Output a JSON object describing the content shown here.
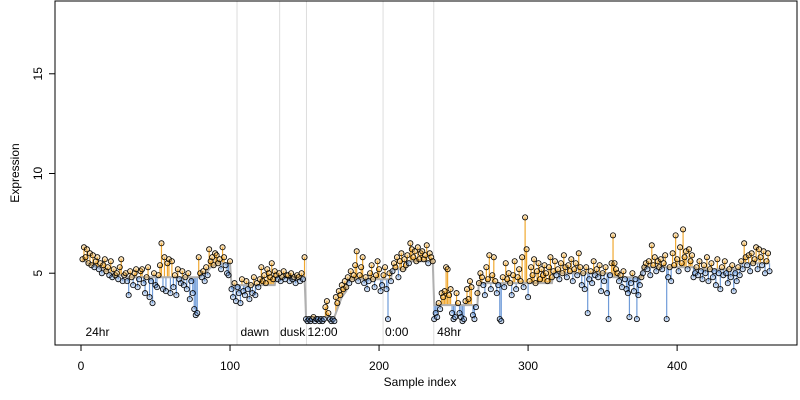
{
  "chart_data": {
    "type": "scatter",
    "xlabel": "Sample index",
    "ylabel": "Expression",
    "xlim": [
      -17.44,
      480.44
    ],
    "ylim": [
      1.4,
      18.65
    ],
    "xticks": [
      0,
      100,
      200,
      300,
      400
    ],
    "yticks": [
      5,
      10,
      15
    ],
    "colors": {
      "above": "#f0a830",
      "below": "#6f9bd8",
      "fit": "#b0b0b0",
      "point": "#000000",
      "vline": "#dddddd",
      "annotation": "#aaaaaa"
    },
    "vlines": [
      104.7,
      133.3,
      151.3,
      202.7,
      236.7
    ],
    "annotations": [
      {
        "text": "24hr",
        "x": 3,
        "y": 2.0
      },
      {
        "text": "dawn",
        "x": 107,
        "y": 2.0
      },
      {
        "text": "dusk",
        "x": 133.5,
        "y": 2.0
      },
      {
        "text": "12:00",
        "x": 152,
        "y": 2.0
      },
      {
        "text": "0:00",
        "x": 204,
        "y": 2.0
      },
      {
        "text": "48hr",
        "x": 239,
        "y": 2.0
      }
    ],
    "x": [
      1,
      2,
      3,
      4,
      5,
      6,
      7,
      8,
      9,
      10,
      11,
      12,
      13,
      14,
      15,
      16,
      17,
      18,
      19,
      20,
      21,
      22,
      23,
      24,
      25,
      26,
      27,
      28,
      29,
      30,
      31,
      32,
      33,
      34,
      35,
      36,
      37,
      38,
      39,
      40,
      41,
      42,
      43,
      44,
      45,
      46,
      47,
      48,
      49,
      50,
      51,
      52,
      53,
      54,
      55,
      56,
      57,
      58,
      59,
      60,
      61,
      62,
      63,
      64,
      65,
      66,
      67,
      68,
      69,
      70,
      71,
      72,
      73,
      74,
      75,
      76,
      77,
      78,
      79,
      80,
      81,
      82,
      83,
      84,
      85,
      86,
      87,
      88,
      89,
      90,
      91,
      92,
      93,
      94,
      95,
      96,
      97,
      98,
      99,
      100,
      101,
      102,
      103,
      104,
      105,
      106,
      107,
      108,
      109,
      110,
      111,
      112,
      113,
      114,
      115,
      116,
      117,
      118,
      119,
      120,
      121,
      122,
      123,
      124,
      125,
      126,
      127,
      128,
      129,
      130,
      131,
      132,
      133,
      134,
      135,
      136,
      137,
      138,
      139,
      140,
      141,
      142,
      143,
      144,
      145,
      146,
      147,
      148,
      149,
      150,
      151,
      152,
      153,
      154,
      155,
      156,
      157,
      158,
      159,
      160,
      161,
      162,
      163,
      164,
      165,
      166,
      167,
      168,
      169,
      170,
      171,
      172,
      173,
      174,
      175,
      176,
      177,
      178,
      179,
      180,
      181,
      182,
      183,
      184,
      185,
      186,
      187,
      188,
      189,
      190,
      191,
      192,
      193,
      194,
      195,
      196,
      197,
      198,
      199,
      200,
      201,
      202,
      203,
      204,
      205,
      206,
      207,
      208,
      209,
      210,
      211,
      212,
      213,
      214,
      215,
      216,
      217,
      218,
      219,
      220,
      221,
      222,
      223,
      224,
      225,
      226,
      227,
      228,
      229,
      230,
      231,
      232,
      233,
      234,
      235,
      236,
      237,
      238,
      239,
      240,
      241,
      242,
      243,
      244,
      245,
      246,
      247,
      248,
      249,
      250,
      251,
      252,
      253,
      254,
      255,
      256,
      257,
      258,
      259,
      260,
      261,
      262,
      263,
      264,
      265,
      266,
      267,
      268,
      269,
      270,
      271,
      272,
      273,
      274,
      275,
      276,
      277,
      278,
      279,
      280,
      281,
      282,
      283,
      284,
      285,
      286,
      287,
      288,
      289,
      290,
      291,
      292,
      293,
      294,
      295,
      296,
      297,
      298,
      299,
      300,
      301,
      302,
      303,
      304,
      305,
      306,
      307,
      308,
      309,
      310,
      311,
      312,
      313,
      314,
      315,
      316,
      317,
      318,
      319,
      320,
      321,
      322,
      323,
      324,
      325,
      326,
      327,
      328,
      329,
      330,
      331,
      332,
      333,
      334,
      335,
      336,
      337,
      338,
      339,
      340,
      341,
      342,
      343,
      344,
      345,
      346,
      347,
      348,
      349,
      350,
      351,
      352,
      353,
      354,
      355,
      356,
      357,
      358,
      359,
      360,
      361,
      362,
      363,
      364,
      365,
      366,
      367,
      368,
      369,
      370,
      371,
      372,
      373,
      374,
      375,
      376,
      377,
      378,
      379,
      380,
      381,
      382,
      383,
      384,
      385,
      386,
      387,
      388,
      389,
      390,
      391,
      392,
      393,
      394,
      395,
      396,
      397,
      398,
      399,
      400,
      401,
      402,
      403,
      404,
      405,
      406,
      407,
      408,
      409,
      410,
      411,
      412,
      413,
      414,
      415,
      416,
      417,
      418,
      419,
      420,
      421,
      422,
      423,
      424,
      425,
      426,
      427,
      428,
      429,
      430,
      431,
      432,
      433,
      434,
      435,
      436,
      437,
      438,
      439,
      440,
      441,
      442,
      443,
      444,
      445,
      446,
      447,
      448,
      449,
      450,
      451,
      452,
      453,
      454,
      455,
      456,
      457,
      458,
      459,
      460,
      461,
      462
    ],
    "values": [
      5.7,
      6.3,
      5.8,
      6.2,
      5.5,
      6.0,
      5.4,
      5.9,
      5.3,
      5.6,
      5.8,
      5.2,
      5.5,
      5.0,
      5.4,
      5.7,
      5.1,
      5.3,
      4.9,
      5.6,
      4.8,
      5.2,
      4.9,
      5.0,
      4.7,
      5.3,
      5.7,
      4.6,
      4.9,
      5.0,
      4.6,
      3.9,
      5.1,
      4.8,
      4.4,
      5.0,
      5.2,
      4.3,
      4.7,
      5.1,
      5.2,
      4.5,
      4.0,
      4.8,
      5.3,
      3.8,
      4.6,
      3.5,
      5.0,
      4.4,
      4.3,
      4.9,
      5.4,
      6.5,
      4.2,
      5.8,
      4.1,
      5.5,
      5.7,
      4.0,
      5.6,
      4.3,
      4.9,
      3.9,
      5.2,
      4.7,
      4.5,
      5.1,
      4.4,
      4.8,
      4.2,
      5.0,
      3.7,
      4.6,
      4.0,
      3.2,
      2.9,
      3.0,
      5.8,
      5.0,
      4.8,
      5.1,
      4.6,
      5.3,
      4.9,
      6.2,
      5.6,
      5.8,
      5.4,
      6.0,
      5.9,
      5.5,
      5.7,
      5.2,
      6.3,
      5.8,
      5.4,
      5.0,
      4.9,
      5.6,
      4.2,
      3.8,
      4.5,
      3.6,
      4.3,
      4.0,
      3.5,
      4.7,
      4.1,
      3.9,
      4.6,
      4.2,
      3.7,
      4.4,
      4.0,
      4.8,
      3.9,
      4.5,
      4.3,
      4.7,
      5.3,
      4.6,
      4.9,
      4.5,
      5.2,
      5.0,
      4.8,
      5.5,
      4.7,
      5.1,
      4.9,
      4.7,
      5.0,
      4.6,
      4.8,
      5.1,
      4.7,
      4.9,
      4.9,
      4.6,
      5.0,
      4.7,
      4.8,
      4.5,
      4.9,
      4.8,
      4.6,
      5.0,
      4.7,
      5.8,
      2.7,
      2.6,
      2.7,
      2.6,
      2.7,
      2.8,
      2.6,
      2.7,
      2.7,
      2.6,
      2.7,
      2.6,
      2.7,
      3.3,
      3.6,
      3.0,
      2.7,
      2.6,
      2.7,
      2.6,
      3.8,
      3.5,
      4.1,
      3.9,
      4.4,
      4.2,
      4.6,
      4.3,
      4.8,
      4.5,
      5.1,
      4.7,
      4.9,
      5.4,
      6.1,
      4.6,
      4.9,
      5.3,
      5.8,
      4.5,
      4.8,
      4.2,
      4.6,
      5.0,
      5.4,
      4.7,
      4.3,
      4.9,
      5.6,
      5.2,
      4.1,
      4.4,
      4.9,
      5.3,
      4.2,
      2.7,
      5.0,
      4.6,
      5.1,
      5.5,
      5.3,
      5.8,
      4.8,
      5.6,
      6.0,
      5.2,
      5.7,
      5.4,
      5.9,
      5.5,
      6.5,
      6.2,
      5.8,
      6.1,
      5.6,
      6.3,
      5.7,
      6.0,
      6.1,
      5.7,
      5.9,
      6.4,
      5.5,
      6.0,
      5.8,
      5.6,
      2.7,
      3.0,
      2.8,
      3.5,
      3.2,
      4.0,
      3.8,
      4.1,
      5.3,
      5.2,
      3.9,
      4.2,
      3.0,
      2.7,
      2.8,
      4.0,
      3.5,
      3.0,
      2.8,
      2.6,
      2.7,
      3.6,
      4.2,
      3.7,
      4.6,
      4.3,
      2.9,
      2.7,
      3.3,
      4.0,
      4.5,
      5.0,
      4.8,
      4.4,
      3.9,
      5.3,
      4.7,
      5.9,
      4.2,
      4.9,
      5.8,
      4.6,
      4.0,
      4.4,
      2.7,
      2.6,
      4.8,
      4.3,
      5.5,
      4.7,
      5.0,
      4.5,
      3.9,
      4.9,
      5.6,
      4.2,
      4.8,
      5.2,
      4.6,
      5.8,
      4.3,
      7.8,
      6.2,
      3.8,
      4.6,
      5.3,
      4.9,
      5.7,
      4.5,
      5.1,
      5.5,
      4.7,
      5.2,
      4.9,
      5.4,
      5.0,
      4.6,
      5.3,
      5.8,
      4.8,
      5.1,
      5.6,
      4.9,
      5.2,
      4.7,
      5.5,
      5.0,
      5.9,
      5.3,
      4.8,
      5.4,
      5.1,
      5.7,
      4.6,
      5.2,
      5.5,
      4.9,
      6.0,
      5.3,
      4.4,
      5.0,
      4.2,
      5.3,
      3.0,
      4.7,
      5.1,
      4.5,
      5.6,
      4.9,
      5.2,
      4.8,
      5.4,
      4.1,
      5.0,
      4.6,
      5.3,
      4.0,
      2.7,
      4.9,
      5.5,
      6.9,
      5.5,
      5.2,
      5.0,
      4.6,
      4.9,
      4.3,
      5.1,
      4.7,
      4.2,
      4.0,
      2.8,
      4.5,
      5.0,
      4.1,
      4.7,
      2.7,
      3.9,
      4.4,
      4.8,
      5.0,
      5.3,
      5.5,
      5.2,
      5.6,
      4.9,
      6.4,
      5.4,
      5.8,
      5.1,
      5.6,
      5.3,
      5.7,
      5.2,
      5.5,
      5.9,
      2.7,
      4.8,
      5.3,
      4.6,
      6.0,
      5.4,
      6.9,
      5.7,
      5.1,
      6.3,
      5.5,
      7.2,
      5.8,
      6.1,
      5.2,
      6.2,
      5.6,
      5.9,
      4.8,
      5.0,
      5.3,
      4.9,
      5.6,
      5.1,
      4.7,
      5.4,
      5.0,
      5.8,
      4.6,
      5.2,
      5.5,
      4.8,
      5.1,
      4.4,
      5.7,
      5.0,
      4.2,
      5.3,
      4.9,
      5.6,
      5.0,
      4.5,
      5.2,
      4.8,
      5.4,
      4.1,
      5.0,
      4.6,
      5.3,
      4.9,
      5.6,
      5.2,
      6.5,
      5.8,
      5.4,
      5.9,
      5.1,
      6.0,
      5.5,
      5.7,
      6.3,
      5.2,
      6.2,
      5.8,
      5.4,
      6.1,
      5.0,
      5.6,
      6.0,
      5.1
    ],
    "fit_values": [
      5.6,
      5.6,
      5.6,
      5.5,
      5.5,
      5.5,
      5.4,
      5.4,
      5.4,
      5.3,
      5.3,
      5.3,
      5.2,
      5.2,
      5.2,
      5.1,
      5.1,
      5.1,
      5.0,
      5.0,
      5.0,
      5.0,
      4.9,
      4.9,
      4.9,
      4.9,
      4.9,
      4.9,
      4.9,
      4.9,
      4.8,
      4.8,
      4.8,
      4.8,
      4.8,
      4.8,
      4.8,
      4.8,
      4.8,
      4.8,
      4.8,
      4.8,
      4.8,
      4.8,
      4.8,
      4.8,
      4.8,
      4.8,
      4.8,
      4.8,
      4.8,
      4.8,
      4.8,
      4.8,
      4.8,
      4.8,
      4.8,
      4.8,
      4.8,
      4.8,
      4.8,
      4.8,
      4.8,
      4.8,
      4.8,
      4.8,
      4.8,
      4.8,
      4.8,
      4.8,
      4.8,
      4.8,
      4.8,
      4.8,
      4.8,
      4.8,
      4.8,
      4.8,
      4.8,
      4.8,
      4.9,
      5.0,
      5.0,
      5.1,
      5.1,
      5.2,
      5.3,
      5.3,
      5.4,
      5.4,
      5.5,
      5.5,
      5.5,
      5.5,
      5.5,
      5.5,
      5.5,
      5.5,
      5.5,
      5.5,
      4.4,
      4.4,
      4.4,
      4.4,
      4.4,
      4.4,
      4.4,
      4.4,
      4.4,
      4.4,
      4.4,
      4.4,
      4.4,
      4.4,
      4.4,
      4.4,
      4.4,
      4.4,
      4.4,
      4.4,
      4.4,
      4.4,
      4.4,
      4.4,
      4.4,
      4.4,
      4.4,
      4.4,
      4.4,
      4.4,
      4.8,
      4.8,
      4.8,
      4.8,
      4.8,
      4.8,
      4.8,
      4.8,
      4.8,
      4.8,
      4.8,
      4.8,
      4.8,
      4.8,
      4.8,
      4.8,
      4.8,
      4.8,
      4.8,
      4.8,
      2.8,
      2.8,
      2.8,
      2.8,
      2.8,
      2.8,
      2.8,
      2.8,
      2.8,
      2.8,
      2.8,
      2.8,
      2.8,
      2.8,
      2.8,
      2.8,
      2.8,
      2.8,
      2.8,
      2.8,
      3.0,
      3.2,
      3.4,
      3.6,
      3.8,
      3.9,
      4.0,
      4.1,
      4.7,
      4.7,
      4.7,
      4.7,
      4.7,
      4.7,
      4.7,
      4.7,
      4.7,
      4.7,
      4.7,
      4.7,
      4.7,
      4.7,
      4.7,
      4.7,
      4.7,
      4.7,
      4.7,
      4.7,
      4.7,
      4.7,
      4.7,
      4.7,
      4.7,
      4.7,
      4.7,
      4.7,
      4.7,
      4.7,
      5.2,
      5.2,
      5.2,
      5.2,
      5.2,
      5.2,
      5.2,
      5.2,
      5.2,
      5.2,
      5.6,
      5.6,
      5.6,
      5.6,
      5.6,
      5.6,
      5.6,
      5.6,
      5.6,
      5.6,
      5.6,
      5.6,
      5.6,
      5.6,
      5.6,
      5.6,
      5.6,
      5.6,
      3.4,
      3.4,
      3.4,
      3.4,
      3.4,
      3.4,
      3.4,
      3.4,
      3.4,
      3.4,
      3.4,
      3.4,
      3.4,
      3.4,
      3.4,
      3.4,
      3.4,
      3.4,
      3.4,
      3.4,
      3.4,
      3.4,
      3.4,
      3.4,
      3.4,
      3.4,
      3.4,
      3.4,
      3.4,
      3.4,
      4.5,
      4.5,
      4.5,
      4.5,
      4.5,
      4.5,
      4.5,
      4.5,
      4.5,
      4.5,
      4.5,
      4.5,
      4.5,
      4.5,
      4.5,
      4.5,
      4.5,
      4.5,
      4.5,
      4.5,
      4.5,
      4.5,
      4.5,
      4.5,
      4.5,
      4.5,
      4.5,
      4.5,
      4.5,
      4.5,
      4.5,
      4.5,
      4.5,
      4.5,
      4.5,
      4.5,
      4.5,
      4.5,
      4.5,
      4.5,
      4.5,
      4.5,
      4.5,
      4.5,
      4.5,
      4.5,
      4.5,
      4.5,
      4.5,
      4.5,
      5.0,
      5.0,
      5.0,
      5.0,
      5.0,
      5.0,
      5.0,
      5.0,
      5.0,
      5.0,
      5.0,
      5.0,
      5.0,
      5.0,
      5.0,
      5.0,
      5.0,
      5.0,
      5.0,
      5.0,
      5.0,
      5.0,
      5.0,
      5.0,
      5.0,
      5.0,
      5.0,
      5.0,
      5.0,
      5.0,
      5.0,
      5.0,
      5.0,
      5.0,
      5.0,
      5.0,
      5.0,
      5.0,
      5.0,
      5.0,
      4.8,
      4.8,
      4.8,
      4.8,
      4.8,
      4.8,
      4.8,
      4.8,
      4.8,
      4.8,
      4.8,
      4.8,
      4.8,
      4.8,
      4.8,
      4.8,
      4.8,
      4.8,
      4.8,
      4.8,
      5.3,
      5.3,
      5.3,
      5.3,
      5.3,
      5.3,
      5.3,
      5.3,
      5.3,
      5.3,
      5.3,
      5.3,
      5.3,
      5.3,
      5.3,
      5.3,
      5.3,
      5.3,
      5.3,
      5.3,
      5.3,
      5.3,
      5.3,
      5.3,
      5.3,
      5.3,
      5.3,
      5.3,
      5.3,
      5.3,
      5.3,
      5.3,
      5.3,
      5.3,
      5.3,
      5.3,
      5.2,
      5.2,
      5.2,
      5.2,
      5.2,
      5.2,
      5.2,
      5.2,
      5.2,
      5.2,
      5.2,
      5.2,
      5.2,
      5.2,
      5.2,
      5.2,
      5.2,
      5.2,
      5.2,
      5.2,
      5.2,
      5.2,
      5.2,
      5.2,
      5.2,
      5.2,
      5.2,
      5.2,
      5.2,
      5.2,
      5.5,
      5.5,
      5.5,
      5.5,
      5.5,
      5.5,
      5.5,
      5.5,
      5.5,
      5.5,
      5.5,
      5.5,
      5.5,
      5.5,
      5.5,
      5.5,
      5.5,
      5.5,
      5.5,
      5.5
    ]
  }
}
